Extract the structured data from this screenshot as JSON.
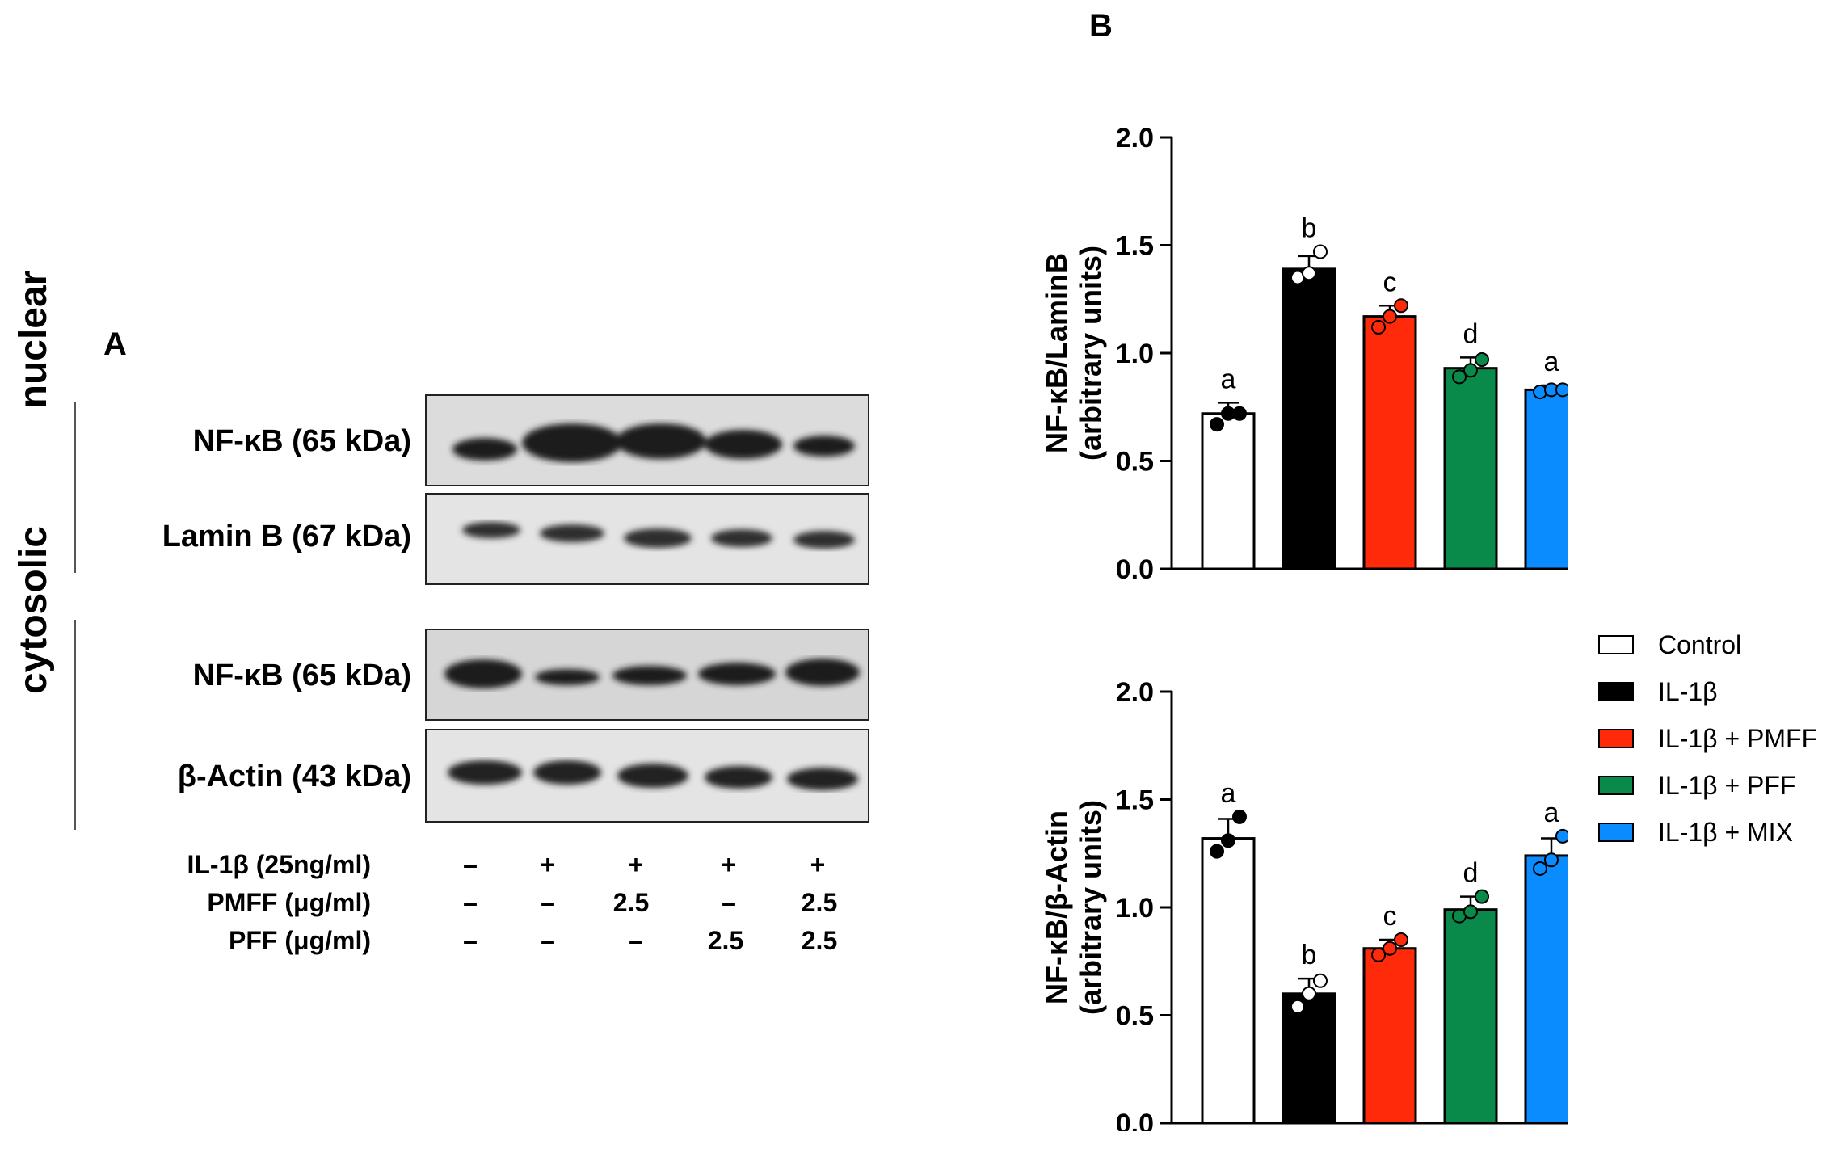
{
  "panel_a_label": "A",
  "panel_b_label": "B",
  "fractions": {
    "nuclear": "nuclear",
    "cytosolic": "cytosolic"
  },
  "bands": {
    "nuc_nfkb": "NF-κB (65 kDa)",
    "nuc_lamin": "Lamin B (67 kDa)",
    "cyt_nfkb": "NF-κB (65 kDa)",
    "cyt_actin": "β-Actin (43 kDa)"
  },
  "conditions": [
    {
      "label": "IL-1β (25ng/ml)",
      "values": [
        "–",
        "+",
        "+",
        "+",
        "+"
      ]
    },
    {
      "label": "PMFF (μg/ml)",
      "values": [
        "–",
        "–",
        "2.5",
        "–",
        "2.5"
      ]
    },
    {
      "label": "PFF (μg/ml)",
      "values": [
        "–",
        "–",
        "–",
        "2.5",
        "2.5"
      ]
    }
  ],
  "legend": [
    {
      "label": "Control",
      "color": "#ffffff"
    },
    {
      "label": "IL-1β",
      "color": "#000000"
    },
    {
      "label": "IL-1β + PMFF",
      "color": "#ff2a0a"
    },
    {
      "label": "IL-1β + PFF",
      "color": "#0a8a4a"
    },
    {
      "label": "IL-1β + MIX",
      "color": "#0a8cff"
    }
  ],
  "chart_data": [
    {
      "type": "bar",
      "ylabel_line1": "NF-κB/LaminB",
      "ylabel_line2": "(arbitrary units)",
      "ylim": [
        0,
        2.0
      ],
      "yticks": [
        "0.0",
        "0.5",
        "1.0",
        "1.5",
        "2.0"
      ],
      "categories": [
        "Control",
        "IL-1β",
        "IL-1β + PMFF",
        "IL-1β + PFF",
        "IL-1β + MIX"
      ],
      "values": [
        0.72,
        1.39,
        1.17,
        0.93,
        0.83
      ],
      "errors": [
        0.05,
        0.06,
        0.05,
        0.05,
        0.02
      ],
      "points": [
        [
          0.67,
          0.72,
          0.72
        ],
        [
          1.35,
          1.37,
          1.47
        ],
        [
          1.12,
          1.17,
          1.22
        ],
        [
          0.89,
          0.92,
          0.97
        ],
        [
          0.82,
          0.83,
          0.83
        ]
      ],
      "letters": [
        "a",
        "b",
        "c",
        "d",
        "a"
      ],
      "colors": [
        "#ffffff",
        "#000000",
        "#ff2a0a",
        "#0a8a4a",
        "#0a8cff"
      ]
    },
    {
      "type": "bar",
      "ylabel_line1": "NF-κB/β-Actin",
      "ylabel_line2": "(arbitrary units)",
      "ylim": [
        0,
        2.0
      ],
      "yticks": [
        "0.0",
        "0.5",
        "1.0",
        "1.5",
        "2.0"
      ],
      "categories": [
        "Control",
        "IL-1β",
        "IL-1β + PMFF",
        "IL-1β + PFF",
        "IL-1β + MIX"
      ],
      "values": [
        1.32,
        0.6,
        0.81,
        0.99,
        1.24
      ],
      "errors": [
        0.09,
        0.07,
        0.04,
        0.06,
        0.08
      ],
      "points": [
        [
          1.26,
          1.31,
          1.42
        ],
        [
          0.54,
          0.6,
          0.66
        ],
        [
          0.78,
          0.81,
          0.85
        ],
        [
          0.96,
          0.98,
          1.05
        ],
        [
          1.18,
          1.22,
          1.33
        ]
      ],
      "letters": [
        "a",
        "b",
        "c",
        "d",
        "a"
      ],
      "colors": [
        "#ffffff",
        "#000000",
        "#ff2a0a",
        "#0a8a4a",
        "#0a8cff"
      ]
    }
  ]
}
